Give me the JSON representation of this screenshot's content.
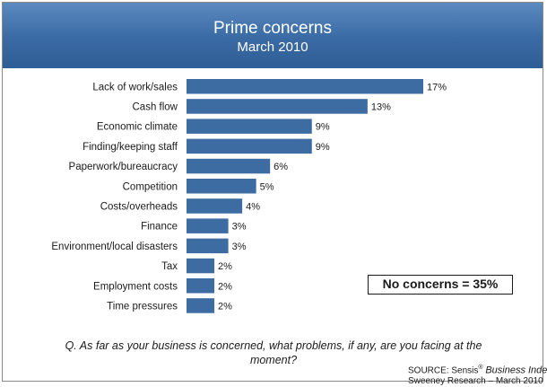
{
  "header": {
    "title": "Prime concerns",
    "subtitle": "March 2010"
  },
  "note": "No concerns = 35%",
  "question": "Q. As far as your business is concerned, what problems, if any, are you facing at the moment?",
  "source": {
    "prefix": "SOURCE: Sensis",
    "mark": "®",
    "italic": "Business Index",
    "line2": "Sweeney Research – March 2010"
  },
  "colors": {
    "bar": "#3d6ca3",
    "header": "#3d6ca3"
  },
  "chart_data": {
    "type": "bar",
    "orientation": "horizontal",
    "categories": [
      "Lack of work/sales",
      "Cash flow",
      "Economic climate",
      "Finding/keeping staff",
      "Paperwork/bureaucracy",
      "Competition",
      "Costs/overheads",
      "Finance",
      "Environment/local disasters",
      "Tax",
      "Employment costs",
      "Time pressures"
    ],
    "values": [
      17,
      13,
      9,
      9,
      6,
      5,
      4,
      3,
      3,
      2,
      2,
      2
    ],
    "value_labels": [
      "17%",
      "13%",
      "9%",
      "9%",
      "6%",
      "5%",
      "4%",
      "3%",
      "3%",
      "2%",
      "2%",
      "2%"
    ],
    "unit": "%",
    "xlim": [
      0,
      17
    ],
    "grid": false,
    "legend": "none"
  }
}
